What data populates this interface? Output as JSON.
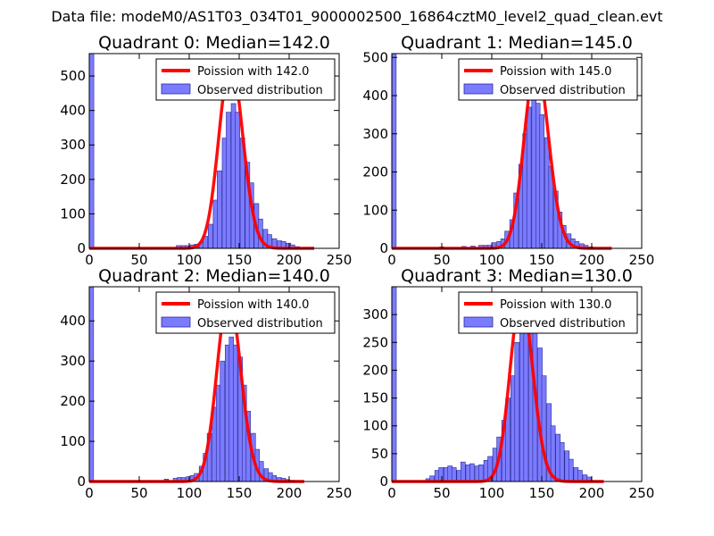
{
  "figure_title": "Data file: modeM0/AS1T03_034T01_9000002500_16864cztM0_level2_quad_clean.evt",
  "colors": {
    "observed_fill": "#7b7bff",
    "observed_edge": "#2a2a99",
    "poisson_line": "#ff0000"
  },
  "chart_data": [
    {
      "type": "bar+line",
      "title": "Quadrant 0: Median=142.0",
      "xlim": [
        0,
        250
      ],
      "ylim": [
        0,
        565
      ],
      "xticks": [
        "0",
        "50",
        "100",
        "150",
        "200",
        "250"
      ],
      "yticks": [
        {
          "v": 0,
          "label": "0"
        },
        {
          "v": 100,
          "label": "100"
        },
        {
          "v": 200,
          "label": "200"
        },
        {
          "v": 300,
          "label": "300"
        },
        {
          "v": 400,
          "label": "400"
        },
        {
          "v": 500,
          "label": "500"
        }
      ],
      "legend": [
        "Poission with 142.0",
        "Observed distribution"
      ],
      "bin_width": 4.58,
      "bins": [
        [
          0,
          565
        ],
        [
          87,
          8
        ],
        [
          92,
          8
        ],
        [
          96,
          8
        ],
        [
          101,
          10
        ],
        [
          105,
          12
        ],
        [
          110,
          18
        ],
        [
          114,
          35
        ],
        [
          119,
          70
        ],
        [
          124,
          140
        ],
        [
          128,
          225
        ],
        [
          133,
          320
        ],
        [
          137,
          395
        ],
        [
          142,
          420
        ],
        [
          146,
          395
        ],
        [
          151,
          320
        ],
        [
          156,
          250
        ],
        [
          160,
          190
        ],
        [
          165,
          130
        ],
        [
          169,
          85
        ],
        [
          174,
          55
        ],
        [
          178,
          40
        ],
        [
          183,
          28
        ],
        [
          188,
          22
        ],
        [
          192,
          20
        ],
        [
          197,
          15
        ],
        [
          201,
          10
        ],
        [
          206,
          5
        ],
        [
          215,
          3
        ],
        [
          220,
          3
        ]
      ],
      "poisson_mean": 142.0,
      "poisson_peak": 540,
      "poisson_range": [
        0,
        225
      ]
    },
    {
      "type": "bar+line",
      "title": "Quadrant 1: Median=145.0",
      "xlim": [
        0,
        250
      ],
      "ylim": [
        0,
        510
      ],
      "xticks": [
        "0",
        "50",
        "100",
        "150",
        "200",
        "250"
      ],
      "yticks": [
        {
          "v": 0,
          "label": "0"
        },
        {
          "v": 100,
          "label": "100"
        },
        {
          "v": 200,
          "label": "200"
        },
        {
          "v": 300,
          "label": "300"
        },
        {
          "v": 400,
          "label": "400"
        },
        {
          "v": 500,
          "label": "500"
        }
      ],
      "legend": [
        "Poission with 145.0",
        "Observed distribution"
      ],
      "bin_width": 4.37,
      "bins": [
        [
          0,
          510
        ],
        [
          48,
          4
        ],
        [
          70,
          5
        ],
        [
          79,
          6
        ],
        [
          87,
          8
        ],
        [
          92,
          8
        ],
        [
          96,
          8
        ],
        [
          100,
          15
        ],
        [
          105,
          18
        ],
        [
          109,
          25
        ],
        [
          113,
          45
        ],
        [
          118,
          75
        ],
        [
          122,
          145
        ],
        [
          127,
          220
        ],
        [
          131,
          300
        ],
        [
          135,
          370
        ],
        [
          140,
          410
        ],
        [
          144,
          380
        ],
        [
          148,
          350
        ],
        [
          153,
          290
        ],
        [
          157,
          215
        ],
        [
          162,
          150
        ],
        [
          166,
          95
        ],
        [
          170,
          60
        ],
        [
          175,
          38
        ],
        [
          179,
          25
        ],
        [
          183,
          18
        ],
        [
          188,
          12
        ],
        [
          192,
          8
        ],
        [
          197,
          4
        ],
        [
          201,
          2
        ]
      ],
      "poisson_mean": 145.0,
      "poisson_peak": 485,
      "poisson_range": [
        0,
        220
      ]
    },
    {
      "type": "bar+line",
      "title": "Quadrant 2: Median=140.0",
      "xlim": [
        0,
        250
      ],
      "ylim": [
        0,
        485
      ],
      "xticks": [
        "0",
        "50",
        "100",
        "150",
        "200",
        "250"
      ],
      "yticks": [
        {
          "v": 0,
          "label": "0"
        },
        {
          "v": 100,
          "label": "100"
        },
        {
          "v": 200,
          "label": "200"
        },
        {
          "v": 300,
          "label": "300"
        },
        {
          "v": 400,
          "label": "400"
        }
      ],
      "legend": [
        "Poission with 140.0",
        "Observed distribution"
      ],
      "bin_width": 4.32,
      "bins": [
        [
          0,
          485
        ],
        [
          75,
          6
        ],
        [
          84,
          8
        ],
        [
          88,
          10
        ],
        [
          92,
          10
        ],
        [
          97,
          12
        ],
        [
          101,
          15
        ],
        [
          105,
          20
        ],
        [
          110,
          38
        ],
        [
          114,
          70
        ],
        [
          118,
          120
        ],
        [
          123,
          185
        ],
        [
          127,
          240
        ],
        [
          131,
          300
        ],
        [
          136,
          340
        ],
        [
          140,
          360
        ],
        [
          144,
          340
        ],
        [
          149,
          310
        ],
        [
          153,
          240
        ],
        [
          157,
          175
        ],
        [
          162,
          120
        ],
        [
          166,
          80
        ],
        [
          170,
          50
        ],
        [
          175,
          32
        ],
        [
          179,
          22
        ],
        [
          183,
          15
        ],
        [
          188,
          10
        ],
        [
          192,
          8
        ],
        [
          196,
          5
        ],
        [
          201,
          3
        ]
      ],
      "poisson_mean": 140.0,
      "poisson_peak": 462,
      "poisson_range": [
        0,
        215
      ]
    },
    {
      "type": "bar+line",
      "title": "Quadrant 3: Median=130.0",
      "xlim": [
        0,
        250
      ],
      "ylim": [
        0,
        350
      ],
      "xticks": [
        "0",
        "50",
        "100",
        "150",
        "200",
        "250"
      ],
      "yticks": [
        {
          "v": 0,
          "label": "0"
        },
        {
          "v": 50,
          "label": "50"
        },
        {
          "v": 100,
          "label": "100"
        },
        {
          "v": 150,
          "label": "150"
        },
        {
          "v": 200,
          "label": "200"
        },
        {
          "v": 250,
          "label": "250"
        },
        {
          "v": 300,
          "label": "300"
        }
      ],
      "legend": [
        "Poission with 130.0",
        "Observed distribution"
      ],
      "bin_width": 4.5,
      "bins": [
        [
          0,
          350
        ],
        [
          34,
          5
        ],
        [
          38,
          10
        ],
        [
          43,
          20
        ],
        [
          47,
          25
        ],
        [
          52,
          25
        ],
        [
          56,
          28
        ],
        [
          60,
          25
        ],
        [
          65,
          20
        ],
        [
          69,
          35
        ],
        [
          74,
          30
        ],
        [
          78,
          32
        ],
        [
          83,
          28
        ],
        [
          87,
          30
        ],
        [
          92,
          38
        ],
        [
          96,
          45
        ],
        [
          101,
          60
        ],
        [
          105,
          80
        ],
        [
          110,
          110
        ],
        [
          114,
          150
        ],
        [
          119,
          190
        ],
        [
          123,
          250
        ],
        [
          128,
          290
        ],
        [
          132,
          320
        ],
        [
          137,
          300
        ],
        [
          141,
          290
        ],
        [
          146,
          240
        ],
        [
          150,
          190
        ],
        [
          155,
          140
        ],
        [
          159,
          100
        ],
        [
          164,
          85
        ],
        [
          168,
          70
        ],
        [
          173,
          55
        ],
        [
          177,
          40
        ],
        [
          182,
          25
        ],
        [
          186,
          20
        ],
        [
          191,
          12
        ],
        [
          195,
          8
        ]
      ],
      "poisson_mean": 130.0,
      "poisson_peak": 330,
      "poisson_range": [
        0,
        212
      ]
    }
  ]
}
